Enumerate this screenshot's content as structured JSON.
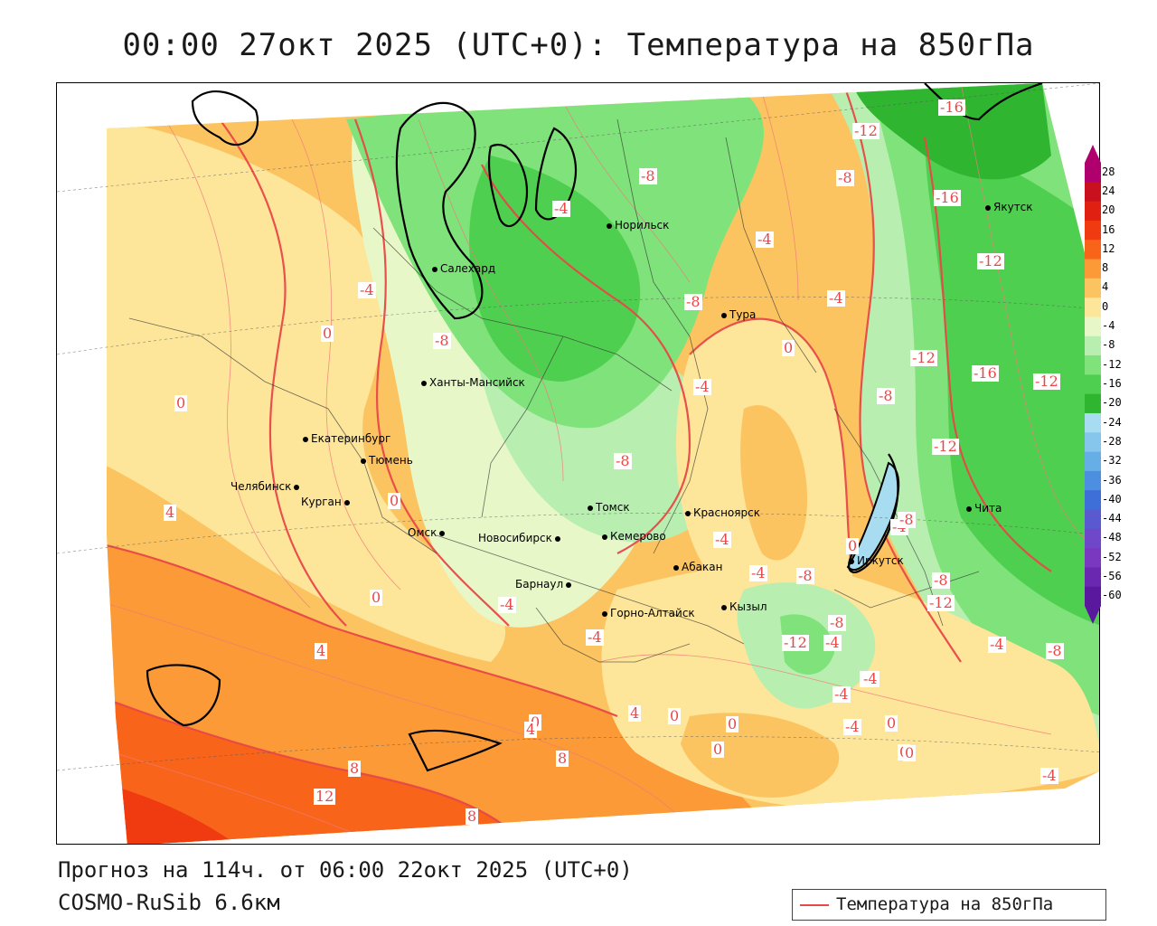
{
  "title": "00:00 27окт 2025 (UTC+0): Температура на 850гПа",
  "footer": {
    "forecast": "Прогноз на 114ч. от 06:00 22окт 2025 (UTC+0)",
    "model": "COSMO-RuSib 6.6км"
  },
  "legend": {
    "label": "Температура на 850гПа",
    "color": "#e84848"
  },
  "colorbar": {
    "labels": [
      "28",
      "24",
      "20",
      "16",
      "12",
      "8",
      "4",
      "0",
      "-4",
      "-8",
      "-12",
      "-16",
      "-20",
      "-24",
      "-28",
      "-32",
      "-36",
      "-40",
      "-44",
      "-48",
      "-52",
      "-56",
      "-60"
    ],
    "colors": [
      "#b0006e",
      "#c8101e",
      "#e02010",
      "#f03a10",
      "#f8641a",
      "#fb9a36",
      "#fcc460",
      "#fde59a",
      "#e8f7c8",
      "#b8efb0",
      "#7fe27a",
      "#4fcf4f",
      "#2fb52f",
      "#a8dcf0",
      "#86c6ec",
      "#66aee6",
      "#4c8fe0",
      "#3e6fd8",
      "#5a5ad0",
      "#6e48c8",
      "#7a38c0",
      "#6a28b0",
      "#5a189e"
    ]
  },
  "cities": [
    {
      "name": "Норильск"
    },
    {
      "name": "Салехард"
    },
    {
      "name": "Тура"
    },
    {
      "name": "Якутск"
    },
    {
      "name": "Ханты-Мансийск"
    },
    {
      "name": "Екатеринбург"
    },
    {
      "name": "Тюмень"
    },
    {
      "name": "Челябинск"
    },
    {
      "name": "Курган"
    },
    {
      "name": "Омск"
    },
    {
      "name": "Томск"
    },
    {
      "name": "Красноярск"
    },
    {
      "name": "Новосибирск"
    },
    {
      "name": "Кемерово"
    },
    {
      "name": "Абакан"
    },
    {
      "name": "Иркутск"
    },
    {
      "name": "Барнаул"
    },
    {
      "name": "Горно-Алтайск"
    },
    {
      "name": "Кызыл"
    },
    {
      "name": "Чита"
    }
  ],
  "contour_labels": [
    "-16",
    "-12",
    "-8",
    "-4",
    "-8",
    "-16",
    "-12",
    "-4",
    "-4",
    "0",
    "-8",
    "-4",
    "-12",
    "-16",
    "-12",
    "-8",
    "-8",
    "-12",
    "0",
    "-4",
    "-8",
    "-4",
    "-8",
    "-4",
    "-4",
    "-12",
    "-4",
    "-8",
    "-8",
    "-4",
    "-4",
    "-4",
    "-4",
    "0",
    "4",
    "0",
    "0",
    "0",
    "0",
    "-4",
    "0",
    "4",
    "4",
    "8",
    "8",
    "12",
    "8",
    "0",
    "0",
    "0",
    "-4",
    "-12",
    "-8",
    "-4",
    "-4",
    "0",
    "0",
    "4",
    "-8"
  ]
}
